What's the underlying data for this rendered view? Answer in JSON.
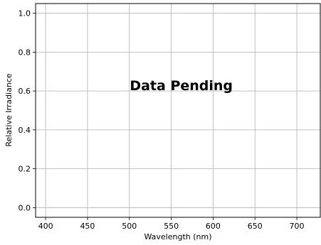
{
  "chart_data": {
    "type": "line",
    "title": "",
    "xlabel": "Wavelength (nm)",
    "ylabel": "Relative Irradiance",
    "xlim": [
      388,
      728
    ],
    "ylim": [
      -0.05,
      1.05
    ],
    "x_ticks": [
      400,
      450,
      500,
      550,
      600,
      650,
      700
    ],
    "x_tick_labels": [
      "400",
      "450",
      "500",
      "550",
      "600",
      "650",
      "700"
    ],
    "y_ticks": [
      0.0,
      0.2,
      0.4,
      0.6,
      0.8,
      1.0
    ],
    "y_tick_labels": [
      "0.0",
      "0.2",
      "0.4",
      "0.6",
      "0.8",
      "1.0"
    ],
    "grid": true,
    "series": [],
    "annotation": {
      "text": "Data Pending",
      "x": 562,
      "y": 0.63
    },
    "colors": {
      "grid": "#b0b0b0",
      "axes": "#000000",
      "background": "#ffffff"
    }
  }
}
